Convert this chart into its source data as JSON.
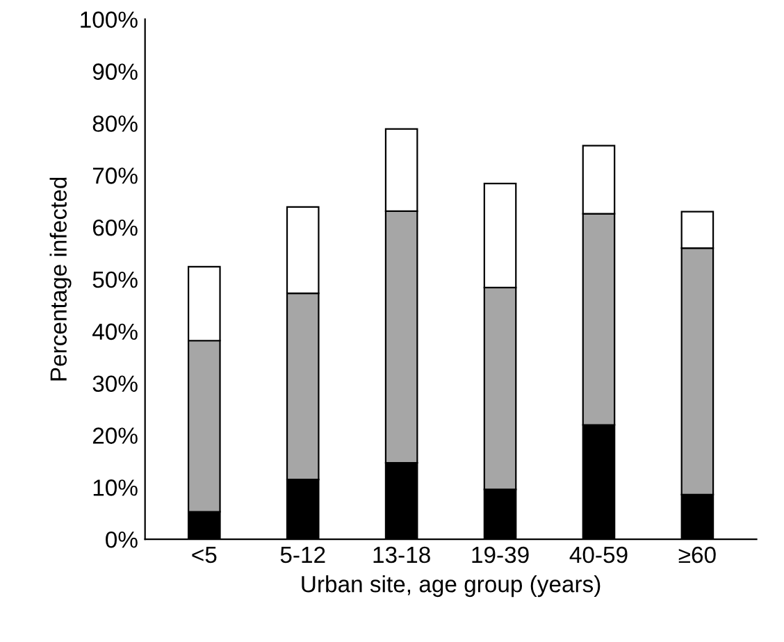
{
  "chart_data": {
    "type": "bar",
    "stacked": true,
    "xlabel": "Urban site, age group (years)",
    "ylabel": "Percentage infected",
    "categories": [
      "<5",
      "5-12",
      "13-18",
      "19-39",
      "40-59",
      "≥60"
    ],
    "series": [
      {
        "color": "#000000",
        "values": [
          5.3,
          11.5,
          14.7,
          9.6,
          22.0,
          8.6
        ]
      },
      {
        "color": "#a6a6a6",
        "values": [
          32.9,
          35.8,
          48.4,
          38.8,
          40.6,
          47.4
        ]
      },
      {
        "color": "#ffffff",
        "values": [
          14.2,
          16.6,
          15.8,
          20.0,
          13.1,
          7.0
        ]
      }
    ],
    "ylim": [
      0,
      100
    ],
    "yticks": [
      {
        "value": 0,
        "label": "0%"
      },
      {
        "value": 10,
        "label": "10%"
      },
      {
        "value": 20,
        "label": "20%"
      },
      {
        "value": 30,
        "label": "30%"
      },
      {
        "value": 40,
        "label": "40%"
      },
      {
        "value": 50,
        "label": "50%"
      },
      {
        "value": 60,
        "label": "60%"
      },
      {
        "value": 70,
        "label": "70%"
      },
      {
        "value": 80,
        "label": "80%"
      },
      {
        "value": 90,
        "label": "90%"
      },
      {
        "value": 100,
        "label": "100%"
      }
    ],
    "grid": false,
    "legend": false
  }
}
